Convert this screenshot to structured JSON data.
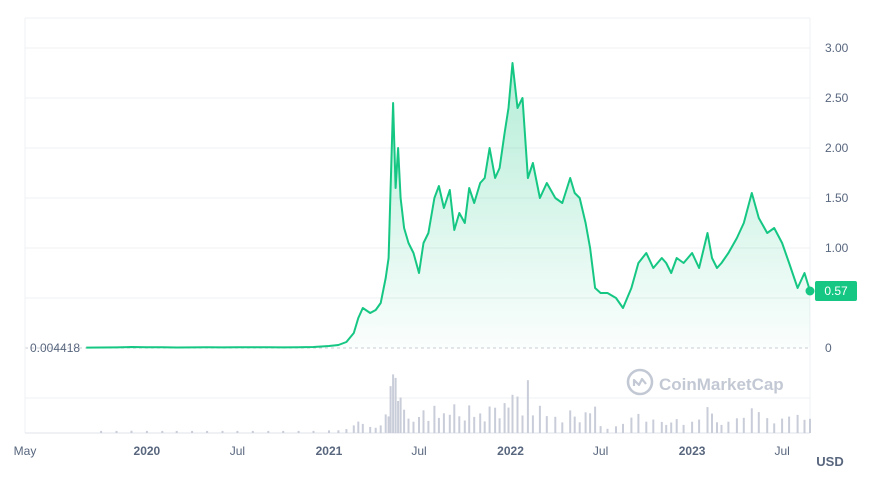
{
  "chart_data": {
    "type": "area",
    "currency": "USD",
    "start_label": "0.004418",
    "last_value_label": "0.57",
    "watermark": "CoinMarketCap",
    "ylim": [
      0,
      3.2
    ],
    "y_ticks": [
      {
        "value": 0,
        "label": "0"
      },
      {
        "value": 1.0,
        "label": "1.00"
      },
      {
        "value": 1.5,
        "label": "1.50"
      },
      {
        "value": 2.0,
        "label": "2.00"
      },
      {
        "value": 2.5,
        "label": "2.50"
      },
      {
        "value": 3.0,
        "label": "3.00"
      }
    ],
    "x_ticks": [
      {
        "date": "2019-05-01",
        "label": "May",
        "bold": false
      },
      {
        "date": "2020-01-01",
        "label": "2020",
        "bold": true
      },
      {
        "date": "2020-07-01",
        "label": "Jul",
        "bold": false
      },
      {
        "date": "2021-01-01",
        "label": "2021",
        "bold": true
      },
      {
        "date": "2021-07-01",
        "label": "Jul",
        "bold": false
      },
      {
        "date": "2022-01-01",
        "label": "2022",
        "bold": true
      },
      {
        "date": "2022-07-01",
        "label": "Jul",
        "bold": false
      },
      {
        "date": "2023-01-01",
        "label": "2023",
        "bold": true
      },
      {
        "date": "2023-07-01",
        "label": "Jul",
        "bold": false
      }
    ],
    "x_range": [
      "2019-05-01",
      "2023-08-26"
    ],
    "colors": {
      "line": "#16c784",
      "area_top": "#16c784",
      "volume": "#c9cdd9",
      "grid": "#eef0f3",
      "label_box": "#16c784",
      "axis_text": "#58667e"
    },
    "series": [
      {
        "x": [
          "2019-09-01",
          "2019-10-01",
          "2019-11-01",
          "2019-12-01",
          "2020-01-01",
          "2020-02-01",
          "2020-03-01",
          "2020-04-01",
          "2020-05-01",
          "2020-06-01",
          "2020-07-01",
          "2020-08-01",
          "2020-09-01",
          "2020-10-01",
          "2020-11-01",
          "2020-12-01",
          "2021-01-01",
          "2021-01-20",
          "2021-02-05",
          "2021-02-20",
          "2021-03-01",
          "2021-03-10",
          "2021-03-25",
          "2021-04-05",
          "2021-04-15",
          "2021-04-25",
          "2021-05-01",
          "2021-05-05",
          "2021-05-10",
          "2021-05-15",
          "2021-05-20",
          "2021-05-25",
          "2021-06-01",
          "2021-06-10",
          "2021-06-20",
          "2021-07-01",
          "2021-07-10",
          "2021-07-20",
          "2021-08-01",
          "2021-08-10",
          "2021-08-20",
          "2021-09-01",
          "2021-09-10",
          "2021-09-20",
          "2021-10-01",
          "2021-10-10",
          "2021-10-20",
          "2021-11-01",
          "2021-11-10",
          "2021-11-20",
          "2021-12-01",
          "2021-12-10",
          "2021-12-20",
          "2021-12-28",
          "2022-01-05",
          "2022-01-15",
          "2022-01-25",
          "2022-02-05",
          "2022-02-15",
          "2022-03-01",
          "2022-03-15",
          "2022-04-01",
          "2022-04-15",
          "2022-05-01",
          "2022-05-10",
          "2022-05-20",
          "2022-06-01",
          "2022-06-10",
          "2022-06-20",
          "2022-07-01",
          "2022-07-15",
          "2022-08-01",
          "2022-08-15",
          "2022-09-01",
          "2022-09-15",
          "2022-10-01",
          "2022-10-15",
          "2022-11-01",
          "2022-11-10",
          "2022-11-20",
          "2022-12-01",
          "2022-12-15",
          "2023-01-01",
          "2023-01-15",
          "2023-02-01",
          "2023-02-10",
          "2023-02-20",
          "2023-03-01",
          "2023-03-15",
          "2023-04-01",
          "2023-04-15",
          "2023-05-01",
          "2023-05-15",
          "2023-06-01",
          "2023-06-15",
          "2023-07-01",
          "2023-07-15",
          "2023-08-01",
          "2023-08-15",
          "2023-08-26"
        ],
        "values": [
          0.004418,
          0.005,
          0.006,
          0.01,
          0.008,
          0.007,
          0.005,
          0.006,
          0.007,
          0.006,
          0.007,
          0.008,
          0.007,
          0.006,
          0.008,
          0.01,
          0.02,
          0.03,
          0.06,
          0.15,
          0.3,
          0.4,
          0.35,
          0.38,
          0.45,
          0.7,
          0.9,
          1.6,
          2.45,
          1.6,
          2.0,
          1.5,
          1.2,
          1.05,
          0.95,
          0.75,
          1.05,
          1.15,
          1.5,
          1.62,
          1.4,
          1.58,
          1.18,
          1.35,
          1.25,
          1.6,
          1.45,
          1.65,
          1.7,
          2.0,
          1.7,
          1.8,
          2.15,
          2.4,
          2.85,
          2.4,
          2.5,
          1.7,
          1.85,
          1.5,
          1.65,
          1.5,
          1.45,
          1.7,
          1.55,
          1.5,
          1.25,
          1.0,
          0.6,
          0.55,
          0.55,
          0.5,
          0.4,
          0.6,
          0.85,
          0.95,
          0.8,
          0.9,
          0.85,
          0.75,
          0.9,
          0.85,
          0.95,
          0.8,
          1.15,
          0.9,
          0.8,
          0.85,
          0.95,
          1.1,
          1.25,
          1.55,
          1.3,
          1.15,
          1.2,
          1.05,
          0.85,
          0.6,
          0.75,
          0.57
        ]
      }
    ]
  }
}
